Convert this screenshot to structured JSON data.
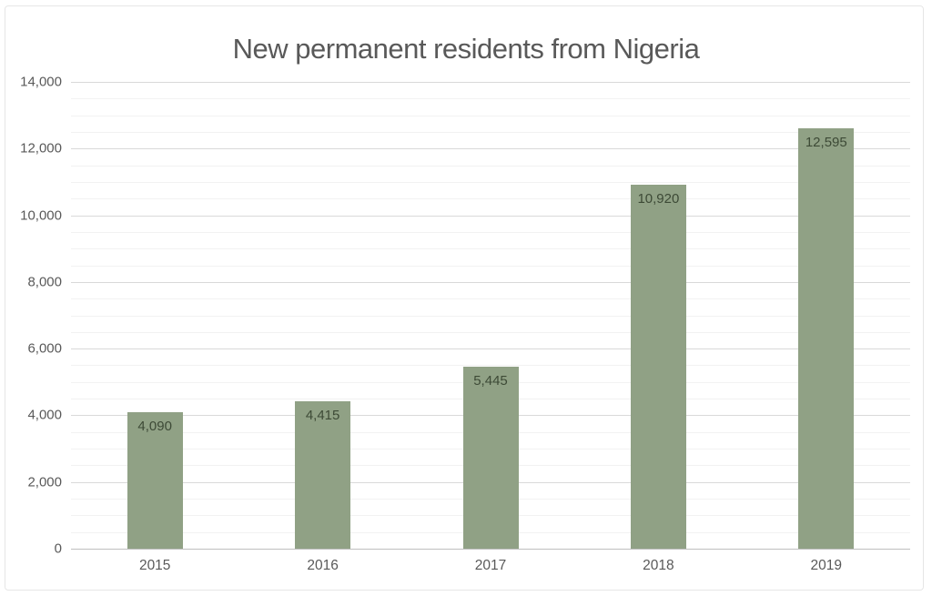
{
  "chart_data": {
    "type": "bar",
    "title": "New permanent residents from Nigeria",
    "categories": [
      "2015",
      "2016",
      "2017",
      "2018",
      "2019"
    ],
    "values": [
      4090,
      4415,
      5445,
      10920,
      12595
    ],
    "data_labels": [
      "4,090",
      "4,415",
      "5,445",
      "10,920",
      "12,595"
    ],
    "xlabel": "",
    "ylabel": "",
    "ylim": [
      0,
      14000
    ],
    "y_major_step": 2000,
    "y_minor_step": 500,
    "y_ticks": [
      {
        "value": 0,
        "label": "0"
      },
      {
        "value": 2000,
        "label": "2,000"
      },
      {
        "value": 4000,
        "label": "4,000"
      },
      {
        "value": 6000,
        "label": "6,000"
      },
      {
        "value": 8000,
        "label": "8,000"
      },
      {
        "value": 10000,
        "label": "10,000"
      },
      {
        "value": 12000,
        "label": "12,000"
      },
      {
        "value": 14000,
        "label": "14,000"
      }
    ],
    "grid": "horizontal major and minor gridlines",
    "legend": "none",
    "data_label_position": "inside-end",
    "colors": {
      "bar_fill": "#90a185",
      "data_label_text": "#3d4a36",
      "title_text": "#595959",
      "tick_text": "#595959",
      "gridline_major": "#d9d9d9",
      "gridline_minor": "#f2f2f2",
      "axis_line": "#bfbfbf",
      "chart_border": "#e6e6e6",
      "background": "#ffffff"
    }
  }
}
